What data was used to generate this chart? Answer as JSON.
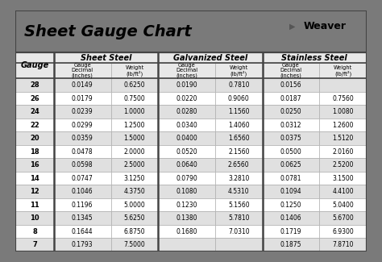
{
  "title": "Sheet Gauge Chart",
  "bg_outer": "#7a7a7a",
  "bg_white": "#ffffff",
  "bg_table_area": "#888888",
  "header_section_bg": "#ffffff",
  "row_bg_even": "#e0e0e0",
  "row_bg_odd": "#ffffff",
  "cell_border": "#aaaaaa",
  "thick_border": "#444444",
  "gauges": [
    28,
    26,
    24,
    22,
    20,
    18,
    16,
    14,
    12,
    11,
    10,
    8,
    7
  ],
  "sheet_steel": [
    [
      "0.0149",
      "0.6250"
    ],
    [
      "0.0179",
      "0.7500"
    ],
    [
      "0.0239",
      "1.0000"
    ],
    [
      "0.0299",
      "1.2500"
    ],
    [
      "0.0359",
      "1.5000"
    ],
    [
      "0.0478",
      "2.0000"
    ],
    [
      "0.0598",
      "2.5000"
    ],
    [
      "0.0747",
      "3.1250"
    ],
    [
      "0.1046",
      "4.3750"
    ],
    [
      "0.1196",
      "5.0000"
    ],
    [
      "0.1345",
      "5.6250"
    ],
    [
      "0.1644",
      "6.8750"
    ],
    [
      "0.1793",
      "7.5000"
    ]
  ],
  "galvanized_steel": [
    [
      "0.0190",
      "0.7810"
    ],
    [
      "0.0220",
      "0.9060"
    ],
    [
      "0.0280",
      "1.1560"
    ],
    [
      "0.0340",
      "1.4060"
    ],
    [
      "0.0400",
      "1.6560"
    ],
    [
      "0.0520",
      "2.1560"
    ],
    [
      "0.0640",
      "2.6560"
    ],
    [
      "0.0790",
      "3.2810"
    ],
    [
      "0.1080",
      "4.5310"
    ],
    [
      "0.1230",
      "5.1560"
    ],
    [
      "0.1380",
      "5.7810"
    ],
    [
      "0.1680",
      "7.0310"
    ],
    [
      "",
      ""
    ]
  ],
  "stainless_steel": [
    [
      "0.0156",
      ""
    ],
    [
      "0.0187",
      "0.7560"
    ],
    [
      "0.0250",
      "1.0080"
    ],
    [
      "0.0312",
      "1.2600"
    ],
    [
      "0.0375",
      "1.5120"
    ],
    [
      "0.0500",
      "2.0160"
    ],
    [
      "0.0625",
      "2.5200"
    ],
    [
      "0.0781",
      "3.1500"
    ],
    [
      "0.1094",
      "4.4100"
    ],
    [
      "0.1250",
      "5.0400"
    ],
    [
      "0.1406",
      "5.6700"
    ],
    [
      "0.1719",
      "6.9300"
    ],
    [
      "0.1875",
      "7.8710"
    ]
  ],
  "subheader_weight": "(lb/ft²)",
  "subheader_decimal": "Gauge\nDecimal\n(inches)",
  "subheader_weight_text": "Weight\n(lb/ft²)"
}
